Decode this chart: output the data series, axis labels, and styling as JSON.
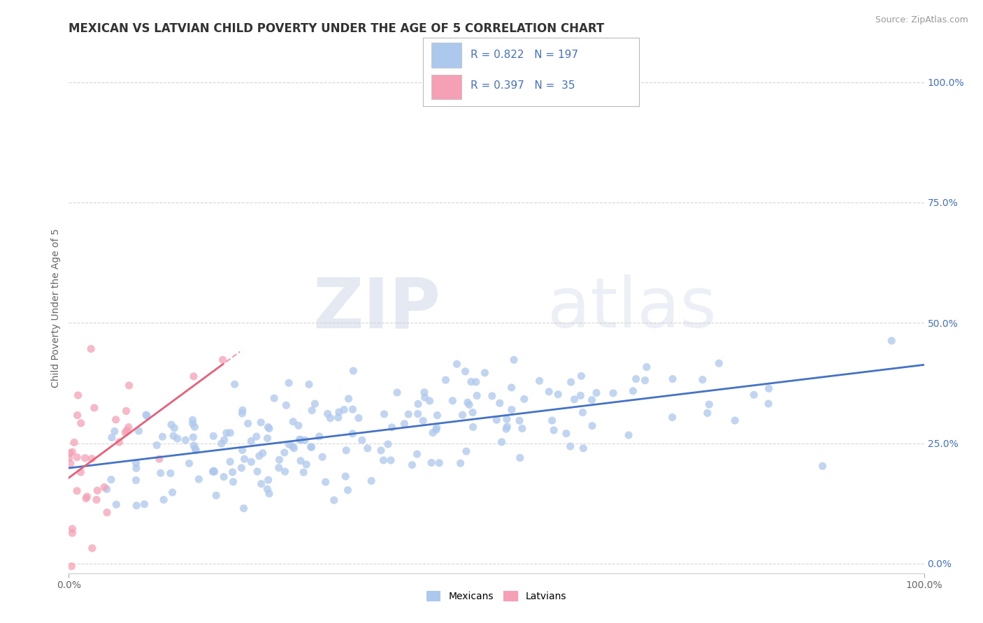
{
  "title": "MEXICAN VS LATVIAN CHILD POVERTY UNDER THE AGE OF 5 CORRELATION CHART",
  "source": "Source: ZipAtlas.com",
  "ylabel": "Child Poverty Under the Age of 5",
  "xlim": [
    0,
    1
  ],
  "ylim": [
    -0.02,
    1.08
  ],
  "right_yticks": [
    0.0,
    0.25,
    0.5,
    0.75,
    1.0
  ],
  "right_yticklabels": [
    "0.0%",
    "25.0%",
    "50.0%",
    "75.0%",
    "100.0%"
  ],
  "mexican_color": "#adc8ed",
  "latvian_color": "#f5a0b5",
  "mexican_line_color": "#4472c4",
  "latvian_line_color": "#e8607a",
  "legend_text_color": "#4472c4",
  "R_mexican": 0.822,
  "N_mexican": 197,
  "R_latvian": 0.397,
  "N_latvian": 35,
  "watermark_zip": "ZIP",
  "watermark_atlas": "atlas",
  "background_color": "#ffffff",
  "grid_color": "#cccccc",
  "title_fontsize": 12,
  "axis_label_fontsize": 10,
  "tick_fontsize": 10
}
